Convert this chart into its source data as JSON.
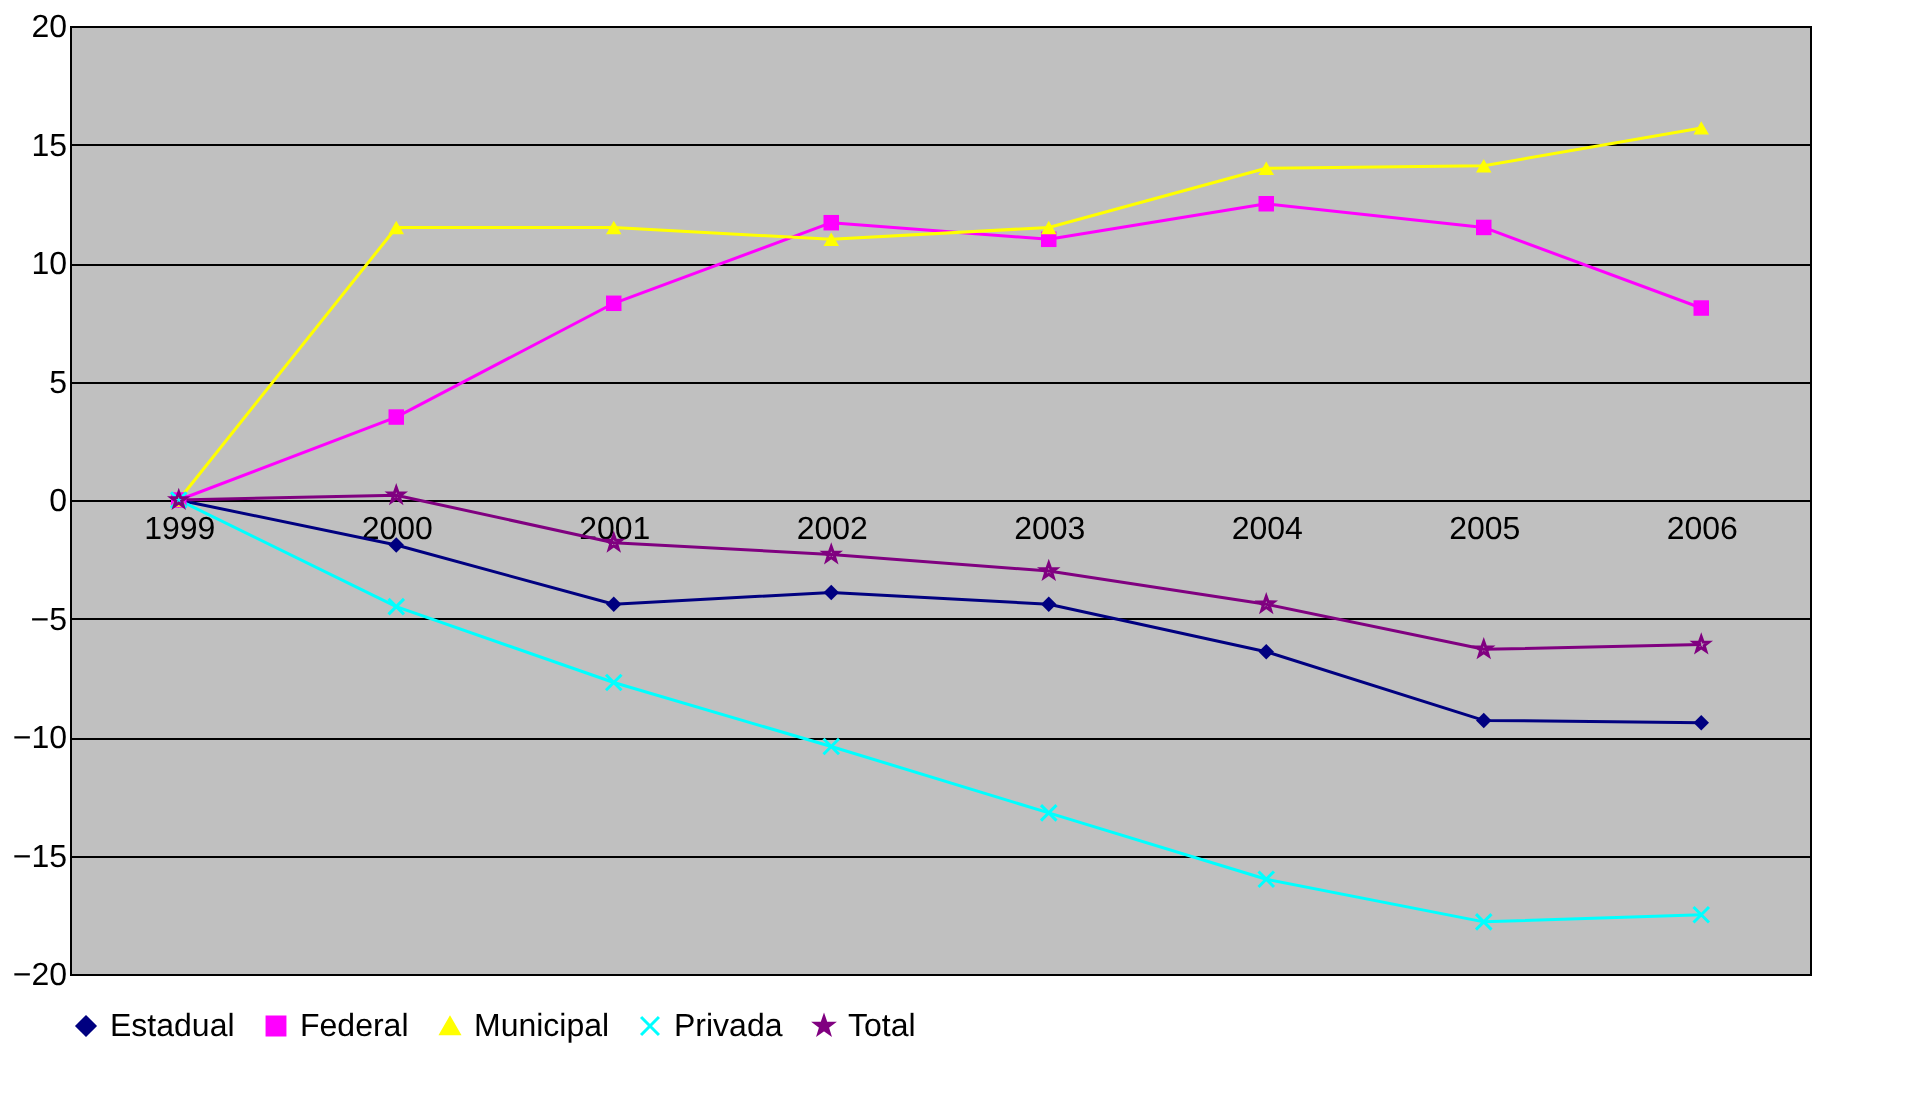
{
  "chart_data": {
    "type": "line",
    "categories": [
      "1999",
      "2000",
      "2001",
      "2002",
      "2003",
      "2004",
      "2005",
      "2006"
    ],
    "series": [
      {
        "name": "Estadual",
        "color": "#000080",
        "marker": "diamond",
        "values": [
          0,
          -1.9,
          -4.4,
          -3.9,
          -4.4,
          -6.4,
          -9.3,
          -9.4
        ]
      },
      {
        "name": "Federal",
        "color": "#ff00ff",
        "marker": "square",
        "values": [
          0,
          3.5,
          8.3,
          11.7,
          11.0,
          12.5,
          11.5,
          8.1
        ]
      },
      {
        "name": "Municipal",
        "color": "#ffff00",
        "marker": "triangle",
        "values": [
          0,
          11.5,
          11.5,
          11.0,
          11.5,
          14.0,
          14.1,
          15.7
        ]
      },
      {
        "name": "Privada",
        "color": "#00ffff",
        "marker": "cross",
        "values": [
          0,
          -4.5,
          -7.7,
          -10.4,
          -13.2,
          -16.0,
          -17.8,
          -17.5
        ]
      },
      {
        "name": "Total",
        "color": "#800080",
        "marker": "star",
        "values": [
          0,
          0.2,
          -1.8,
          -2.3,
          -3.0,
          -4.4,
          -6.3,
          -6.1
        ]
      }
    ],
    "ylim": [
      -20,
      20
    ],
    "yticks": [
      -20,
      -15,
      -10,
      -5,
      0,
      5,
      10,
      15,
      20
    ],
    "grid": "y",
    "legend": "bottom"
  }
}
